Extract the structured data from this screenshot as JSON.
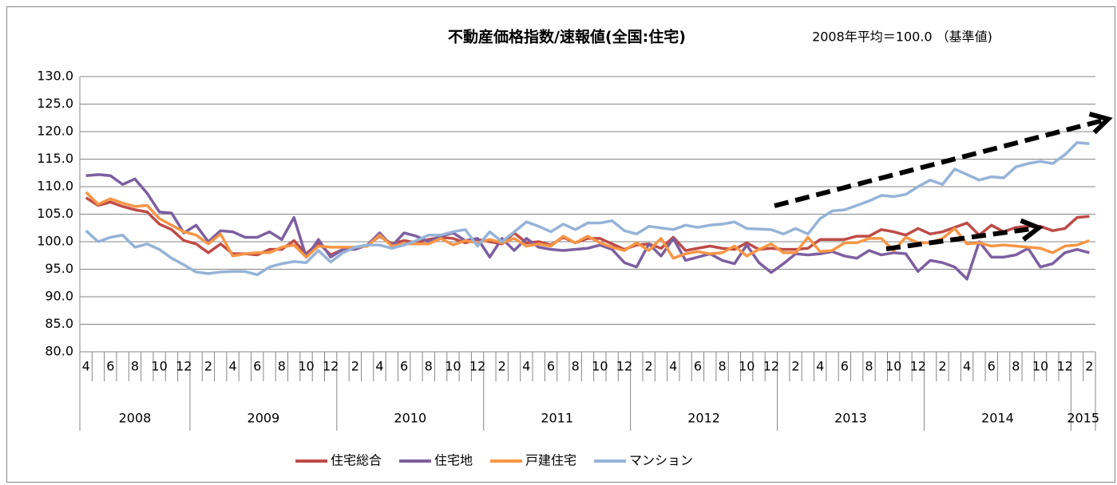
{
  "chart_data": {
    "type": "line",
    "title": "不動産価格指数/速報値(全国:住宅)",
    "subtitle": "2008年平均＝100.0 （基準値)",
    "categories": [
      "4",
      null,
      "6",
      null,
      "8",
      null,
      "10",
      null,
      "12",
      null,
      "2",
      null,
      "4",
      null,
      "6",
      null,
      "8",
      null,
      "10",
      null,
      "12",
      null,
      "2",
      null,
      "4",
      null,
      "6",
      null,
      "8",
      null,
      "10",
      null,
      "12",
      null,
      "2",
      null,
      "4",
      null,
      "6",
      null,
      "8",
      null,
      "10",
      null,
      "12",
      null,
      "2",
      null,
      "4",
      null,
      "6",
      null,
      "8",
      null,
      "10",
      null,
      "12",
      null,
      "2",
      null,
      "4",
      null,
      "6",
      null,
      "8",
      null,
      "10",
      null,
      "12",
      null,
      "2",
      null,
      "4",
      null,
      "6",
      null,
      "8",
      null,
      "10",
      null,
      "12",
      null,
      "2"
    ],
    "x_groups": [
      "2008",
      "2009",
      "2010",
      "2011",
      "2012",
      "2013",
      "2014",
      "2015"
    ],
    "ylim": [
      80,
      130
    ],
    "yticks": [
      {
        "value": 80,
        "label": "80.0"
      },
      {
        "value": 85,
        "label": "85.0"
      },
      {
        "value": 90,
        "label": "90.0"
      },
      {
        "value": 95,
        "label": "95.0"
      },
      {
        "value": 100,
        "label": "100.0"
      },
      {
        "value": 105,
        "label": "105.0"
      },
      {
        "value": 110,
        "label": "110.0"
      },
      {
        "value": 115,
        "label": "115.0"
      },
      {
        "value": 120,
        "label": "120.0"
      },
      {
        "value": 125,
        "label": "125.0"
      },
      {
        "value": 130,
        "label": "130.0"
      }
    ],
    "grid": true,
    "legend": "bottom",
    "series": [
      {
        "name": "住宅総合",
        "color": "#be4b48",
        "values": [
          108.0,
          106.6,
          107.2,
          106.4,
          105.8,
          105.4,
          103.2,
          102.2,
          100.2,
          99.6,
          98.0,
          99.6,
          97.8,
          97.8,
          97.6,
          98.6,
          98.6,
          100.2,
          97.8,
          99.8,
          97.6,
          98.6,
          98.8,
          99.4,
          101.0,
          99.6,
          100.2,
          99.8,
          100.4,
          100.8,
          100.6,
          99.8,
          100.4,
          100.0,
          99.6,
          101.6,
          99.8,
          100.0,
          99.4,
          100.8,
          99.8,
          100.6,
          100.6,
          99.6,
          98.6,
          99.4,
          99.6,
          98.8,
          100.8,
          98.4,
          98.8,
          99.2,
          98.8,
          98.6,
          99.8,
          98.6,
          98.8,
          98.6,
          98.6,
          98.8,
          100.4,
          100.4,
          100.4,
          101.0,
          101.0,
          102.2,
          101.8,
          101.2,
          102.4,
          101.4,
          101.8,
          102.6,
          103.4,
          101.2,
          103.0,
          101.8,
          102.6,
          102.8,
          102.8,
          102.0,
          102.4,
          104.4,
          104.6
        ]
      },
      {
        "name": "住宅地",
        "color": "#7d5fa0",
        "values": [
          112.0,
          112.2,
          112.0,
          110.4,
          111.4,
          108.8,
          105.4,
          105.2,
          101.6,
          103.0,
          100.0,
          102.0,
          101.8,
          100.8,
          100.8,
          101.8,
          100.4,
          104.4,
          97.2,
          100.4,
          97.2,
          98.6,
          98.6,
          99.4,
          101.6,
          99.2,
          101.6,
          101.0,
          100.0,
          101.0,
          101.6,
          100.2,
          100.6,
          97.2,
          100.6,
          98.4,
          100.6,
          99.0,
          98.6,
          98.4,
          98.6,
          98.8,
          99.4,
          98.6,
          96.2,
          95.4,
          99.6,
          97.4,
          100.6,
          96.6,
          97.2,
          97.8,
          96.6,
          96.0,
          99.4,
          96.2,
          94.4,
          96.0,
          97.8,
          97.6,
          97.8,
          98.2,
          97.4,
          97.0,
          98.4,
          97.6,
          98.0,
          97.8,
          94.6,
          96.6,
          96.2,
          95.4,
          93.2,
          100.0,
          97.2,
          97.2,
          97.6,
          98.8,
          95.4,
          96.0,
          98.0,
          98.6,
          98.0
        ]
      },
      {
        "name": "戸建住宅",
        "color": "#f79646",
        "values": [
          109.0,
          106.8,
          107.8,
          107.0,
          106.4,
          106.6,
          104.2,
          103.0,
          101.8,
          101.2,
          99.6,
          101.4,
          97.4,
          97.8,
          98.0,
          98.0,
          99.0,
          99.4,
          97.2,
          99.2,
          99.0,
          99.0,
          99.0,
          99.2,
          101.2,
          99.2,
          99.6,
          99.6,
          99.6,
          100.6,
          99.4,
          100.2,
          99.8,
          100.4,
          99.8,
          100.6,
          99.2,
          99.6,
          99.2,
          101.0,
          99.8,
          101.0,
          99.8,
          99.0,
          98.4,
          99.8,
          98.4,
          100.6,
          97.0,
          97.8,
          98.2,
          97.8,
          98.0,
          99.2,
          97.4,
          98.6,
          99.6,
          98.0,
          98.0,
          100.8,
          98.2,
          98.4,
          99.8,
          99.8,
          100.6,
          100.6,
          98.4,
          100.8,
          99.8,
          99.8,
          100.6,
          102.4,
          99.6,
          99.8,
          99.2,
          99.4,
          99.2,
          99.0,
          98.8,
          98.0,
          99.2,
          99.4,
          100.2
        ]
      },
      {
        "name": "マンション",
        "color": "#95b3d7",
        "values": [
          102.0,
          100.0,
          100.8,
          101.2,
          99.0,
          99.6,
          98.6,
          97.0,
          95.8,
          94.5,
          94.2,
          94.5,
          94.6,
          94.6,
          94.0,
          95.4,
          96.0,
          96.4,
          96.2,
          98.4,
          96.3,
          98.0,
          99.0,
          99.4,
          99.4,
          98.8,
          99.4,
          100.2,
          101.2,
          101.2,
          101.8,
          102.2,
          99.2,
          101.8,
          100.0,
          101.8,
          103.6,
          102.8,
          101.8,
          103.2,
          102.2,
          103.4,
          103.4,
          103.8,
          102.0,
          101.4,
          102.8,
          102.5,
          102.2,
          103.0,
          102.6,
          103.0,
          103.2,
          103.6,
          102.4,
          102.3,
          102.2,
          101.4,
          102.4,
          101.4,
          104.2,
          105.6,
          105.8,
          106.6,
          107.4,
          108.4,
          108.2,
          108.6,
          110.0,
          111.2,
          110.4,
          113.2,
          112.2,
          111.2,
          111.8,
          111.6,
          113.6,
          114.2,
          114.6,
          114.2,
          115.8,
          118.0,
          117.8
        ]
      }
    ]
  }
}
